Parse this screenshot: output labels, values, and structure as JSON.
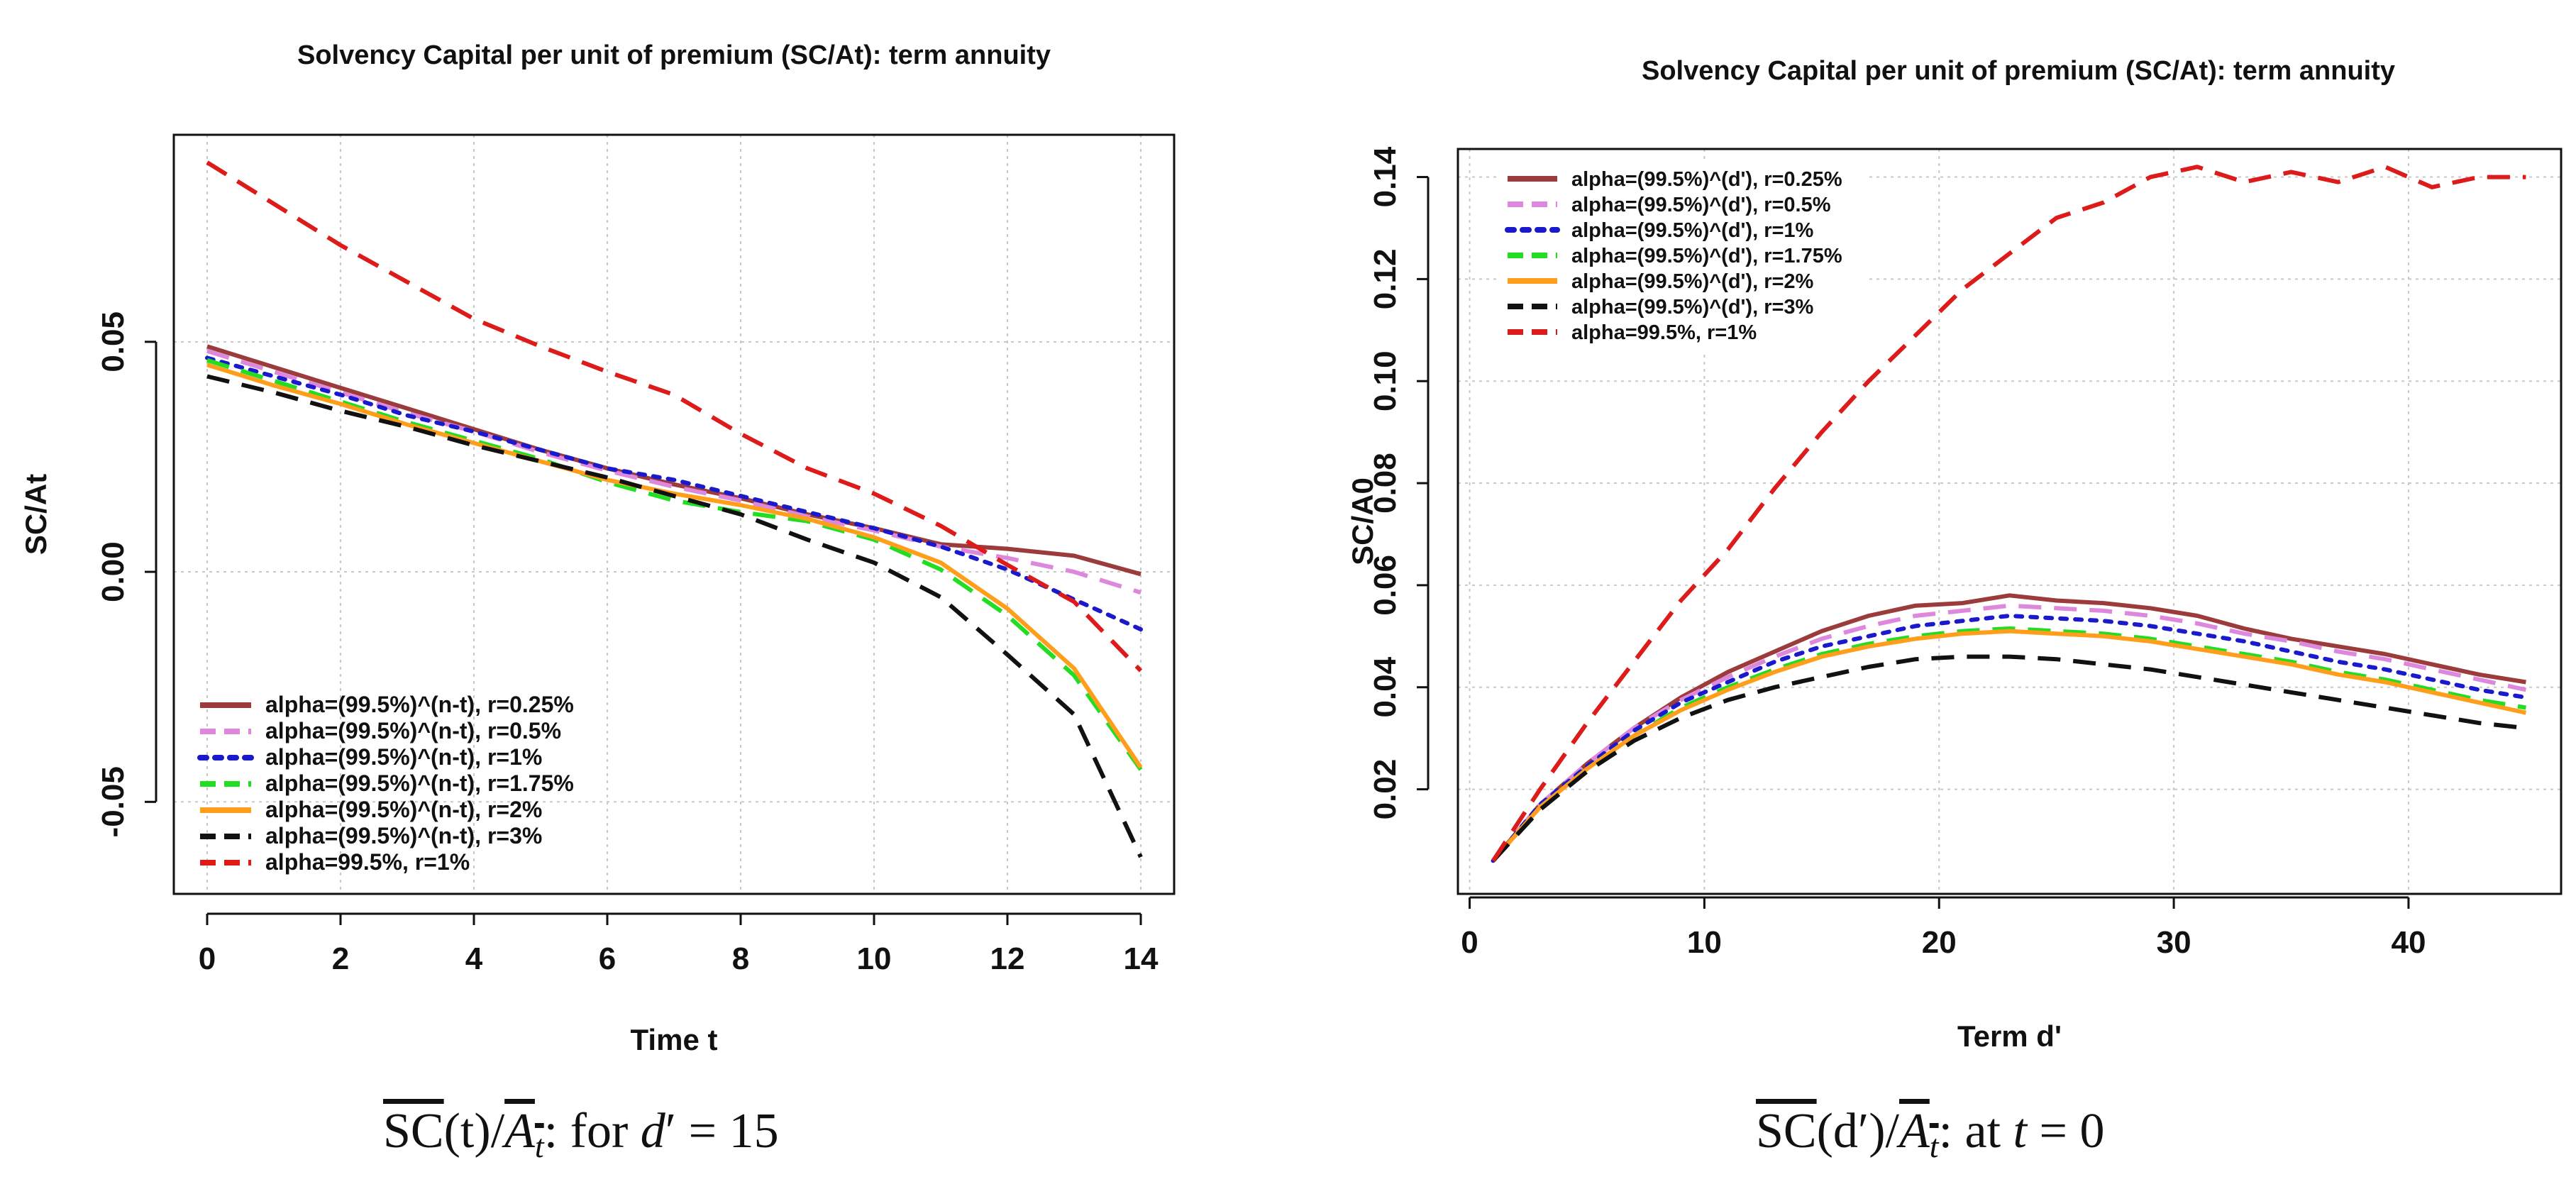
{
  "chart_data": [
    {
      "type": "line",
      "title": "Solvency Capital per unit of premium (SC/At): term annuity",
      "xlabel": "Time t",
      "ylabel": "SC/At",
      "xlim": [
        -0.5,
        14.5
      ],
      "ylim": [
        -0.07,
        0.095
      ],
      "xticks": [
        0,
        2,
        4,
        6,
        8,
        10,
        12,
        14
      ],
      "yticks": [
        -0.05,
        0.0,
        0.05
      ],
      "xtick_labels": [
        "0",
        "2",
        "4",
        "6",
        "8",
        "10",
        "12",
        "14"
      ],
      "ytick_labels": [
        "-0.05",
        "0.00",
        "0.05"
      ],
      "grid": true,
      "legend_position": "bottom-left",
      "series": [
        {
          "name": "alpha=(99.5%)^(n-t), r=0.25%",
          "color": "#9b3b3b",
          "dash": "solid",
          "x": [
            0,
            1,
            2,
            3,
            4,
            5,
            6,
            7,
            8,
            9,
            10,
            11,
            12,
            13,
            14
          ],
          "y": [
            0.049,
            0.0445,
            0.04,
            0.0355,
            0.031,
            0.0265,
            0.0225,
            0.019,
            0.016,
            0.0125,
            0.0095,
            0.006,
            0.005,
            0.0035,
            -0.0005
          ]
        },
        {
          "name": "alpha=(99.5%)^(n-t), r=0.5%",
          "color": "#dd88dd",
          "dash": "dashed",
          "x": [
            0,
            1,
            2,
            3,
            4,
            5,
            6,
            7,
            8,
            9,
            10,
            11,
            12,
            13,
            14
          ],
          "y": [
            0.048,
            0.0435,
            0.039,
            0.0345,
            0.0305,
            0.026,
            0.022,
            0.0185,
            0.0155,
            0.012,
            0.009,
            0.0055,
            0.003,
            0.0,
            -0.0045
          ]
        },
        {
          "name": "alpha=(99.5%)^(n-t), r=1%",
          "color": "#1a1acc",
          "dash": "dotted",
          "x": [
            0,
            1,
            2,
            3,
            4,
            5,
            6,
            7,
            8,
            9,
            10,
            11,
            12,
            13,
            14
          ],
          "y": [
            0.0465,
            0.0425,
            0.0385,
            0.034,
            0.0305,
            0.0265,
            0.0225,
            0.02,
            0.0165,
            0.013,
            0.0095,
            0.0055,
            0.0005,
            -0.006,
            -0.0125
          ]
        },
        {
          "name": "alpha=(99.5%)^(n-t), r=1.75%",
          "color": "#22dd22",
          "dash": "dashed",
          "x": [
            0,
            1,
            2,
            3,
            4,
            5,
            6,
            7,
            8,
            9,
            10,
            11,
            12,
            13,
            14
          ],
          "y": [
            0.046,
            0.0415,
            0.037,
            0.0325,
            0.0285,
            0.0245,
            0.0195,
            0.0155,
            0.013,
            0.011,
            0.007,
            0.0005,
            -0.0095,
            -0.0225,
            -0.043
          ]
        },
        {
          "name": "alpha=(99.5%)^(n-t), r=2%",
          "color": "#ff9e1a",
          "dash": "solid",
          "x": [
            0,
            1,
            2,
            3,
            4,
            5,
            6,
            7,
            8,
            9,
            10,
            11,
            12,
            13,
            14
          ],
          "y": [
            0.045,
            0.0405,
            0.0365,
            0.032,
            0.028,
            0.024,
            0.02,
            0.017,
            0.0145,
            0.0115,
            0.0075,
            0.002,
            -0.008,
            -0.021,
            -0.0425
          ]
        },
        {
          "name": "alpha=(99.5%)^(n-t), r=3%",
          "color": "#111111",
          "dash": "dashed",
          "x": [
            0,
            1,
            2,
            3,
            4,
            5,
            6,
            7,
            8,
            9,
            10,
            11,
            12,
            13,
            14
          ],
          "y": [
            0.0425,
            0.039,
            0.035,
            0.0315,
            0.0275,
            0.024,
            0.0205,
            0.0165,
            0.0125,
            0.007,
            0.002,
            -0.0055,
            -0.018,
            -0.031,
            -0.062
          ]
        },
        {
          "name": "alpha=99.5%, r=1%",
          "color": "#dd1b1b",
          "dash": "dashed",
          "x": [
            0,
            1,
            2,
            3,
            4,
            5,
            6,
            7,
            8,
            9,
            10,
            11,
            12,
            13,
            14
          ],
          "y": [
            0.089,
            0.08,
            0.071,
            0.063,
            0.055,
            0.049,
            0.0435,
            0.0385,
            0.03,
            0.0225,
            0.017,
            0.01,
            0.0015,
            -0.0065,
            -0.0215
          ]
        }
      ]
    },
    {
      "type": "line",
      "title": "Solvency Capital per unit of premium (SC/At): term annuity",
      "xlabel": "Term d'",
      "ylabel": "SC/A0",
      "xlim": [
        -0.5,
        46.5
      ],
      "ylim": [
        -0.0005,
        0.1455
      ],
      "xticks": [
        0,
        10,
        20,
        30,
        40
      ],
      "yticks": [
        0.02,
        0.04,
        0.06,
        0.08,
        0.1,
        0.12,
        0.14
      ],
      "xtick_labels": [
        "0",
        "10",
        "20",
        "30",
        "40"
      ],
      "ytick_labels": [
        "0.02",
        "0.04",
        "0.06",
        "0.08",
        "0.10",
        "0.12",
        "0.14"
      ],
      "grid": true,
      "legend_position": "top-left",
      "series": [
        {
          "name": "alpha=(99.5%)^(d'), r=0.25%",
          "color": "#9b3b3b",
          "dash": "solid",
          "x": [
            1,
            3,
            5,
            7,
            9,
            11,
            13,
            15,
            17,
            19,
            21,
            23,
            25,
            27,
            29,
            31,
            33,
            35,
            37,
            39,
            41,
            43,
            45
          ],
          "y": [
            0.006,
            0.017,
            0.025,
            0.032,
            0.038,
            0.043,
            0.047,
            0.051,
            0.054,
            0.056,
            0.0565,
            0.058,
            0.057,
            0.0565,
            0.0555,
            0.054,
            0.0515,
            0.0495,
            0.048,
            0.0465,
            0.0445,
            0.0425,
            0.041
          ]
        },
        {
          "name": "alpha=(99.5%)^(d'), r=0.5%",
          "color": "#dd88dd",
          "dash": "dashed",
          "x": [
            1,
            3,
            5,
            7,
            9,
            11,
            13,
            15,
            17,
            19,
            21,
            23,
            25,
            27,
            29,
            31,
            33,
            35,
            37,
            39,
            41,
            43,
            45
          ],
          "y": [
            0.006,
            0.017,
            0.025,
            0.032,
            0.0375,
            0.042,
            0.046,
            0.0495,
            0.052,
            0.054,
            0.055,
            0.056,
            0.0555,
            0.055,
            0.054,
            0.0525,
            0.0505,
            0.049,
            0.047,
            0.0455,
            0.0435,
            0.0415,
            0.0395
          ]
        },
        {
          "name": "alpha=(99.5%)^(d'), r=1%",
          "color": "#1a1acc",
          "dash": "dotted",
          "x": [
            1,
            3,
            5,
            7,
            9,
            11,
            13,
            15,
            17,
            19,
            21,
            23,
            25,
            27,
            29,
            31,
            33,
            35,
            37,
            39,
            41,
            43,
            45
          ],
          "y": [
            0.006,
            0.017,
            0.0245,
            0.0315,
            0.037,
            0.041,
            0.045,
            0.048,
            0.05,
            0.052,
            0.053,
            0.054,
            0.0535,
            0.053,
            0.052,
            0.0505,
            0.049,
            0.047,
            0.045,
            0.0435,
            0.0415,
            0.0395,
            0.038
          ]
        },
        {
          "name": "alpha=(99.5%)^(d'), r=1.75%",
          "color": "#22dd22",
          "dash": "dashed",
          "x": [
            1,
            3,
            5,
            7,
            9,
            11,
            13,
            15,
            17,
            19,
            21,
            23,
            25,
            27,
            29,
            31,
            33,
            35,
            37,
            39,
            41,
            43,
            45
          ],
          "y": [
            0.006,
            0.0165,
            0.024,
            0.0305,
            0.036,
            0.04,
            0.0435,
            0.0465,
            0.0485,
            0.05,
            0.051,
            0.0515,
            0.051,
            0.0505,
            0.0495,
            0.048,
            0.0465,
            0.045,
            0.043,
            0.0415,
            0.0395,
            0.0375,
            0.036
          ]
        },
        {
          "name": "alpha=(99.5%)^(d'), r=2%",
          "color": "#ff9e1a",
          "dash": "solid",
          "x": [
            1,
            3,
            5,
            7,
            9,
            11,
            13,
            15,
            17,
            19,
            21,
            23,
            25,
            27,
            29,
            31,
            33,
            35,
            37,
            39,
            41,
            43,
            45
          ],
          "y": [
            0.006,
            0.0165,
            0.024,
            0.0305,
            0.0355,
            0.0395,
            0.043,
            0.046,
            0.048,
            0.0495,
            0.0505,
            0.051,
            0.0505,
            0.05,
            0.049,
            0.0475,
            0.046,
            0.0445,
            0.0425,
            0.041,
            0.039,
            0.037,
            0.035
          ]
        },
        {
          "name": "alpha=(99.5%)^(d'), r=3%",
          "color": "#111111",
          "dash": "dashed",
          "x": [
            1,
            3,
            5,
            7,
            9,
            11,
            13,
            15,
            17,
            19,
            21,
            23,
            25,
            27,
            29,
            31,
            33,
            35,
            37,
            39,
            41,
            43,
            45
          ],
          "y": [
            0.006,
            0.016,
            0.0235,
            0.0295,
            0.034,
            0.0375,
            0.04,
            0.042,
            0.044,
            0.0455,
            0.046,
            0.046,
            0.0455,
            0.0445,
            0.0435,
            0.042,
            0.0405,
            0.039,
            0.0375,
            0.036,
            0.0345,
            0.033,
            0.032
          ]
        },
        {
          "name": "alpha=99.5%, r=1%",
          "color": "#dd1b1b",
          "dash": "dashed",
          "x": [
            1,
            3,
            5,
            7,
            9,
            11,
            13,
            15,
            17,
            19,
            21,
            23,
            25,
            27,
            29,
            31,
            33,
            35,
            37,
            39,
            41,
            43,
            45
          ],
          "y": [
            0.006,
            0.02,
            0.033,
            0.045,
            0.057,
            0.067,
            0.079,
            0.09,
            0.1,
            0.109,
            0.118,
            0.125,
            0.132,
            0.135,
            0.14,
            0.142,
            0.139,
            0.141,
            0.139,
            0.142,
            0.138,
            0.14,
            0.14
          ]
        }
      ]
    }
  ],
  "captions": {
    "left": {
      "sc": "SC",
      "t_args": "(t)/",
      "a": "A",
      "a_sub": "t",
      "tail": ": for ",
      "d": "d",
      "eq": "′ = 15"
    },
    "right": {
      "sc": "SC",
      "d_args": "(d′)/",
      "a": "A",
      "a_sub": "t",
      "tail": ": at ",
      "t": "t",
      "eq": " = 0"
    }
  }
}
